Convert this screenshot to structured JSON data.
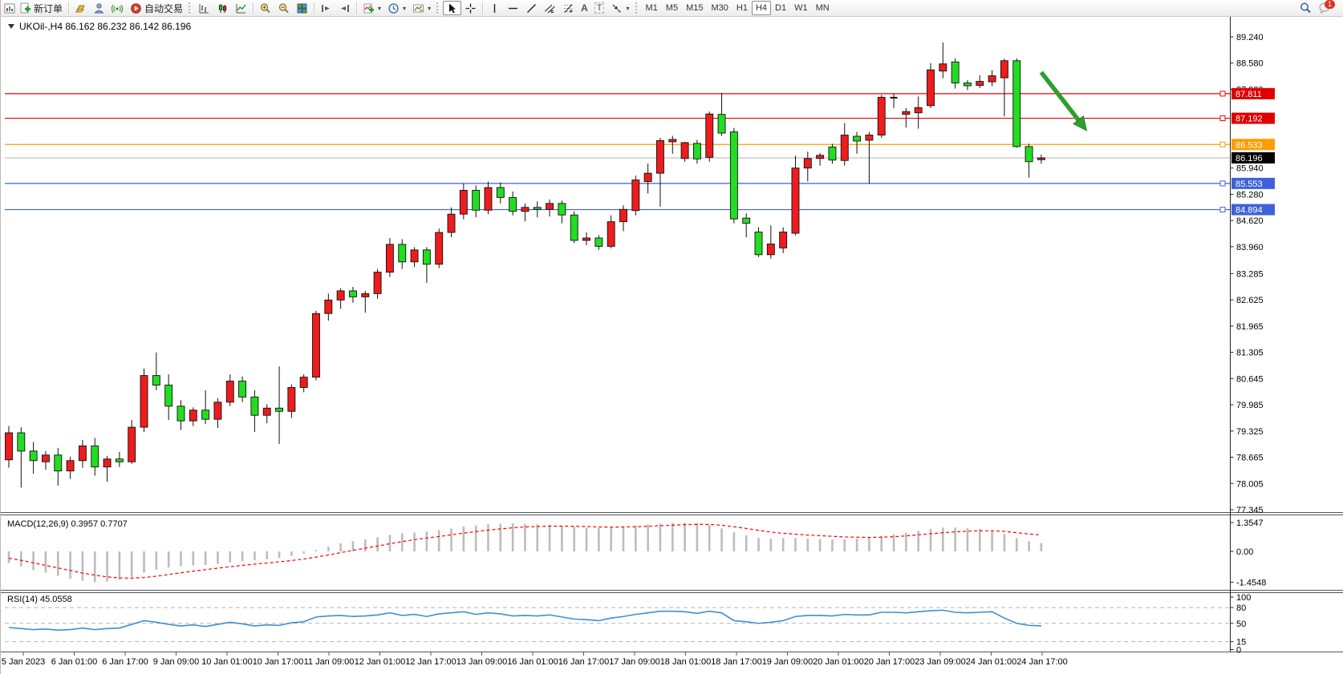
{
  "toolbar": {
    "new_order_label": "新订单",
    "autotrading_label": "自动交易",
    "text_tool_label": "A",
    "text_label_tool_label": "T",
    "timeframes": [
      "M1",
      "M5",
      "M15",
      "M30",
      "H1",
      "H4",
      "D1",
      "W1",
      "MN"
    ],
    "active_timeframe": "H4",
    "chat_badge": "1",
    "icons": [
      "window-icon",
      "new-order-icon",
      "gold-icon",
      "navigator-icon",
      "signals-icon",
      "autotrading-icon",
      "bar-chart-icon",
      "candlestick-icon",
      "line-chart-icon",
      "zoom-in-icon",
      "zoom-out-icon",
      "tile-windows-icon",
      "auto-scroll-icon",
      "chart-shift-icon",
      "indicators-icon",
      "periods-icon",
      "templates-icon",
      "cursor-icon",
      "crosshair-icon",
      "vertical-line-icon",
      "horizontal-line-icon",
      "trendline-icon",
      "channel-icon",
      "fibonacci-icon",
      "text-icon",
      "text-label-icon",
      "arrows-icon",
      "search-icon",
      "chat-icon"
    ]
  },
  "chart": {
    "title_full": "UKOil-,H4  86.162 86.232 86.142 86.196",
    "symbol": "UKOil-",
    "period": "H4",
    "ohlc_current": {
      "open": 86.162,
      "high": 86.232,
      "low": 86.142,
      "close": 86.196
    }
  },
  "chart_data": {
    "type": "candlestick",
    "title": "UKOil-,H4",
    "colors": {
      "bull": "#ee1c1c",
      "bear": "#22dd22",
      "candle_outline": "#111111",
      "resistance_line": "#ee0000",
      "orange_line": "#ff9c00",
      "support_line": "#3f62d9",
      "current_line": "#c0c0c0",
      "current_label_bg": "#000000",
      "macd_histogram": "#bcbcbc",
      "macd_signal": "#ff0000",
      "rsi_line": "#3f8fd0",
      "arrow": "#2f9e30"
    },
    "price_axis": {
      "min": 77.345,
      "max": 89.24,
      "ticks": [
        "89.240",
        "88.580",
        "87.920",
        "85.940",
        "85.280",
        "84.620",
        "83.960",
        "83.285",
        "82.625",
        "81.965",
        "81.305",
        "80.645",
        "79.985",
        "79.325",
        "78.665",
        "78.005",
        "77.345"
      ]
    },
    "time_labels": [
      "5 Jan 2023",
      "6 Jan 01:00",
      "6 Jan 17:00",
      "9 Jan 09:00",
      "10 Jan 01:00",
      "10 Jan 17:00",
      "11 Jan 09:00",
      "12 Jan 01:00",
      "12 Jan 17:00",
      "13 Jan 09:00",
      "16 Jan 01:00",
      "16 Jan 17:00",
      "17 Jan 09:00",
      "18 Jan 01:00",
      "18 Jan 17:00",
      "19 Jan 09:00",
      "20 Jan 01:00",
      "20 Jan 17:00",
      "23 Jan 09:00",
      "24 Jan 01:00",
      "24 Jan 17:00"
    ],
    "horizontal_lines": [
      {
        "price": 87.811,
        "label": "87.811",
        "color": "#ee0000",
        "label_bg": "#e00000"
      },
      {
        "price": 87.192,
        "label": "87.192",
        "color": "#ee0000",
        "label_bg": "#e00000"
      },
      {
        "price": 86.533,
        "label": "86.533",
        "color": "#ff9c00",
        "label_bg": "#ff9c00"
      },
      {
        "price": 85.553,
        "label": "85.553",
        "color": "#3f62d9",
        "label_bg": "#3f62d9"
      },
      {
        "price": 84.894,
        "label": "84.894",
        "color": "#3f62d9",
        "label_bg": "#3f62d9"
      }
    ],
    "current_price": {
      "value": 86.196,
      "label": "86.196"
    },
    "annotation_arrow": {
      "from_candle": 84.0,
      "from_price": 88.35,
      "to_candle": 87.7,
      "to_price": 86.88
    },
    "candles": [
      [
        78.6,
        79.45,
        78.4,
        79.28
      ],
      [
        79.28,
        79.42,
        77.9,
        78.82
      ],
      [
        78.82,
        79.05,
        78.25,
        78.58
      ],
      [
        78.55,
        78.82,
        78.35,
        78.72
      ],
      [
        78.72,
        78.9,
        77.95,
        78.32
      ],
      [
        78.32,
        78.68,
        78.12,
        78.58
      ],
      [
        78.58,
        79.1,
        78.4,
        78.95
      ],
      [
        78.95,
        79.15,
        78.2,
        78.42
      ],
      [
        78.42,
        78.7,
        78.05,
        78.62
      ],
      [
        78.62,
        78.8,
        78.42,
        78.55
      ],
      [
        78.55,
        79.6,
        78.5,
        79.42
      ],
      [
        79.42,
        80.9,
        79.3,
        80.72
      ],
      [
        80.72,
        81.3,
        80.35,
        80.48
      ],
      [
        80.48,
        80.75,
        79.6,
        79.95
      ],
      [
        79.95,
        80.1,
        79.35,
        79.58
      ],
      [
        79.58,
        79.92,
        79.45,
        79.85
      ],
      [
        79.85,
        80.35,
        79.5,
        79.62
      ],
      [
        79.62,
        80.15,
        79.4,
        80.05
      ],
      [
        80.05,
        80.75,
        79.95,
        80.58
      ],
      [
        80.58,
        80.7,
        80.05,
        80.18
      ],
      [
        80.18,
        80.35,
        79.3,
        79.72
      ],
      [
        79.72,
        80.0,
        79.52,
        79.9
      ],
      [
        79.9,
        80.95,
        79.0,
        79.82
      ],
      [
        79.82,
        80.5,
        79.65,
        80.42
      ],
      [
        80.42,
        80.75,
        80.3,
        80.68
      ],
      [
        80.68,
        82.35,
        80.6,
        82.28
      ],
      [
        82.28,
        82.78,
        82.1,
        82.62
      ],
      [
        82.62,
        82.92,
        82.4,
        82.85
      ],
      [
        82.85,
        82.95,
        82.55,
        82.7
      ],
      [
        82.7,
        82.85,
        82.3,
        82.78
      ],
      [
        82.78,
        83.4,
        82.65,
        83.32
      ],
      [
        83.32,
        84.18,
        83.2,
        84.02
      ],
      [
        84.02,
        84.15,
        83.4,
        83.58
      ],
      [
        83.58,
        83.95,
        83.45,
        83.88
      ],
      [
        83.88,
        83.95,
        83.05,
        83.52
      ],
      [
        83.52,
        84.42,
        83.42,
        84.32
      ],
      [
        84.32,
        84.95,
        84.2,
        84.78
      ],
      [
        84.78,
        85.55,
        84.65,
        85.38
      ],
      [
        85.38,
        85.5,
        84.7,
        84.88
      ],
      [
        84.88,
        85.6,
        84.78,
        85.45
      ],
      [
        85.45,
        85.58,
        85.05,
        85.2
      ],
      [
        85.2,
        85.35,
        84.75,
        84.85
      ],
      [
        84.85,
        85.05,
        84.6,
        84.95
      ],
      [
        84.95,
        85.1,
        84.7,
        84.9
      ],
      [
        84.9,
        85.15,
        84.72,
        85.05
      ],
      [
        85.05,
        85.12,
        84.55,
        84.76
      ],
      [
        84.76,
        84.85,
        84.05,
        84.12
      ],
      [
        84.12,
        84.32,
        84.0,
        84.18
      ],
      [
        84.18,
        84.25,
        83.88,
        83.97
      ],
      [
        83.97,
        84.75,
        83.92,
        84.59
      ],
      [
        84.59,
        85.0,
        84.35,
        84.9
      ],
      [
        84.87,
        85.75,
        84.75,
        85.64
      ],
      [
        85.6,
        86.05,
        85.3,
        85.81
      ],
      [
        85.81,
        86.7,
        84.97,
        86.63
      ],
      [
        86.6,
        86.75,
        86.3,
        86.66
      ],
      [
        86.18,
        86.6,
        86.1,
        86.58
      ],
      [
        86.56,
        86.65,
        86.05,
        86.17
      ],
      [
        86.21,
        87.36,
        86.1,
        87.3
      ],
      [
        87.29,
        87.83,
        86.75,
        86.82
      ],
      [
        86.85,
        86.95,
        84.55,
        84.66
      ],
      [
        84.68,
        84.8,
        84.2,
        84.55
      ],
      [
        84.33,
        84.45,
        83.7,
        83.76
      ],
      [
        83.76,
        84.5,
        83.66,
        84.03
      ],
      [
        83.93,
        84.45,
        83.8,
        84.33
      ],
      [
        84.3,
        86.25,
        84.25,
        85.94
      ],
      [
        85.94,
        86.35,
        85.6,
        86.18
      ],
      [
        86.18,
        86.32,
        86.0,
        86.26
      ],
      [
        86.47,
        86.55,
        86.05,
        86.14
      ],
      [
        86.13,
        87.07,
        86.0,
        86.77
      ],
      [
        86.74,
        86.85,
        86.3,
        86.62
      ],
      [
        86.64,
        86.85,
        85.54,
        86.77
      ],
      [
        86.77,
        87.78,
        86.7,
        87.72
      ],
      [
        87.68,
        87.82,
        87.45,
        87.71
      ],
      [
        87.29,
        87.45,
        86.96,
        87.36
      ],
      [
        87.33,
        87.74,
        86.93,
        87.46
      ],
      [
        87.51,
        88.58,
        87.45,
        88.41
      ],
      [
        88.38,
        89.1,
        88.2,
        88.56
      ],
      [
        88.61,
        88.7,
        87.94,
        88.08
      ],
      [
        88.08,
        88.15,
        87.9,
        88.01
      ],
      [
        88.02,
        88.27,
        87.95,
        88.12
      ],
      [
        88.11,
        88.4,
        88.0,
        88.26
      ],
      [
        88.21,
        88.69,
        87.24,
        88.64
      ],
      [
        88.64,
        88.7,
        86.45,
        86.48
      ],
      [
        86.48,
        86.55,
        85.7,
        86.1
      ],
      [
        86.15,
        86.28,
        86.05,
        86.196
      ]
    ],
    "macd": {
      "name": "MACD(12,26,9)",
      "label_full": "MACD(12,26,9) 0.3957 0.7707",
      "value": 0.3957,
      "signal_value": 0.7707,
      "scale_ticks": [
        {
          "label": "1.3547",
          "value": 1.3547
        },
        {
          "label": "0.00",
          "value": 0.0
        },
        {
          "label": "-1.4548",
          "value": -1.4548
        }
      ],
      "histogram": [
        -0.55,
        -0.72,
        -0.88,
        -1.0,
        -1.15,
        -1.28,
        -1.38,
        -1.45,
        -1.42,
        -1.34,
        -1.2,
        -1.0,
        -0.86,
        -0.76,
        -0.7,
        -0.67,
        -0.64,
        -0.59,
        -0.52,
        -0.46,
        -0.42,
        -0.37,
        -0.3,
        -0.21,
        -0.1,
        0.06,
        0.22,
        0.38,
        0.48,
        0.56,
        0.66,
        0.78,
        0.85,
        0.89,
        0.93,
        1.0,
        1.08,
        1.17,
        1.22,
        1.28,
        1.3,
        1.32,
        1.3,
        1.27,
        1.24,
        1.2,
        1.15,
        1.11,
        1.1,
        1.12,
        1.17,
        1.22,
        1.27,
        1.31,
        1.34,
        1.35,
        1.33,
        1.25,
        1.08,
        0.9,
        0.75,
        0.64,
        0.6,
        0.62,
        0.63,
        0.61,
        0.58,
        0.56,
        0.57,
        0.6,
        0.66,
        0.73,
        0.8,
        0.88,
        0.97,
        1.06,
        1.12,
        1.12,
        1.09,
        1.06,
        0.98,
        0.82,
        0.62,
        0.48,
        0.3957
      ],
      "signal": [
        -0.32,
        -0.42,
        -0.54,
        -0.66,
        -0.78,
        -0.9,
        -1.02,
        -1.12,
        -1.2,
        -1.25,
        -1.26,
        -1.23,
        -1.17,
        -1.09,
        -1.01,
        -0.93,
        -0.86,
        -0.79,
        -0.72,
        -0.66,
        -0.6,
        -0.55,
        -0.49,
        -0.43,
        -0.36,
        -0.27,
        -0.17,
        -0.06,
        0.05,
        0.15,
        0.25,
        0.36,
        0.46,
        0.55,
        0.63,
        0.7,
        0.78,
        0.86,
        0.93,
        1.0,
        1.06,
        1.11,
        1.15,
        1.17,
        1.19,
        1.19,
        1.18,
        1.17,
        1.15,
        1.14,
        1.15,
        1.16,
        1.18,
        1.21,
        1.23,
        1.26,
        1.27,
        1.27,
        1.23,
        1.16,
        1.08,
        0.99,
        0.91,
        0.85,
        0.81,
        0.77,
        0.74,
        0.71,
        0.68,
        0.67,
        0.66,
        0.67,
        0.69,
        0.73,
        0.78,
        0.83,
        0.88,
        0.92,
        0.95,
        0.97,
        0.97,
        0.94,
        0.88,
        0.82,
        0.7707
      ]
    },
    "rsi": {
      "name": "RSI(14)",
      "label_full": "RSI(14) 45.0558",
      "value": 45.0558,
      "levels": [
        80,
        50,
        15
      ],
      "scale_ticks": [
        {
          "label": "100",
          "value": 100
        },
        {
          "label": "80",
          "value": 80
        },
        {
          "label": "50",
          "value": 50
        },
        {
          "label": "15",
          "value": 15
        },
        {
          "label": "0",
          "value": 0
        }
      ],
      "values": [
        42,
        40,
        38,
        39,
        37,
        38,
        41,
        38,
        40,
        41,
        48,
        55,
        52,
        48,
        45,
        47,
        44,
        48,
        52,
        49,
        45,
        47,
        46,
        51,
        53,
        62,
        64,
        65,
        63,
        64,
        66,
        70,
        65,
        67,
        63,
        68,
        70,
        72,
        67,
        70,
        68,
        64,
        65,
        64,
        66,
        62,
        58,
        57,
        55,
        60,
        63,
        67,
        70,
        73,
        73,
        72,
        69,
        73,
        70,
        55,
        53,
        50,
        52,
        55,
        63,
        65,
        65,
        64,
        67,
        66,
        66,
        71,
        71,
        70,
        72,
        74,
        75,
        71,
        70,
        71,
        72,
        60,
        50,
        46,
        45.06
      ]
    }
  }
}
